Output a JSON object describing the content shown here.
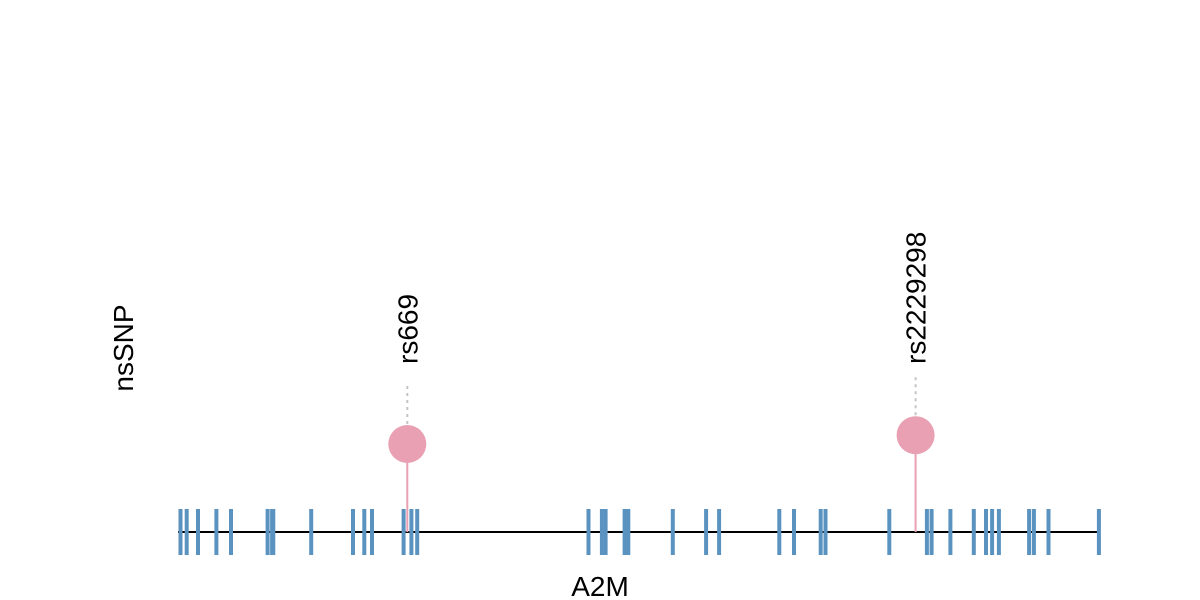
{
  "chart_data": {
    "type": "lollipop",
    "track_label": "nsSNP",
    "gene_label": "A2M",
    "x_range": [
      0,
      1
    ],
    "exons": [
      0.0027,
      0.0094,
      0.0217,
      0.0417,
      0.0575,
      0.0972,
      0.1021,
      0.1034,
      0.1445,
      0.1898,
      0.2021,
      0.2104,
      0.2447,
      0.2531,
      0.2594,
      0.4452,
      0.4598,
      0.4638,
      0.4844,
      0.4884,
      0.5367,
      0.5728,
      0.5869,
      0.6522,
      0.6681,
      0.6971,
      0.7023,
      0.7715,
      0.8123,
      0.8174,
      0.8377,
      0.8631,
      0.8764,
      0.883,
      0.8904,
      0.9231,
      0.9283,
      0.9441,
      0.9988
    ],
    "snps": [
      {
        "id": "rs669",
        "position": 0.2487,
        "height": 1.0
      },
      {
        "id": "rs2229298",
        "position": 0.8,
        "height": 1.1
      }
    ],
    "colors": {
      "backbone": "#000000",
      "exon": "#5b93c0",
      "snp": "#e8a0b2",
      "leader": "#c4c4c4"
    }
  }
}
